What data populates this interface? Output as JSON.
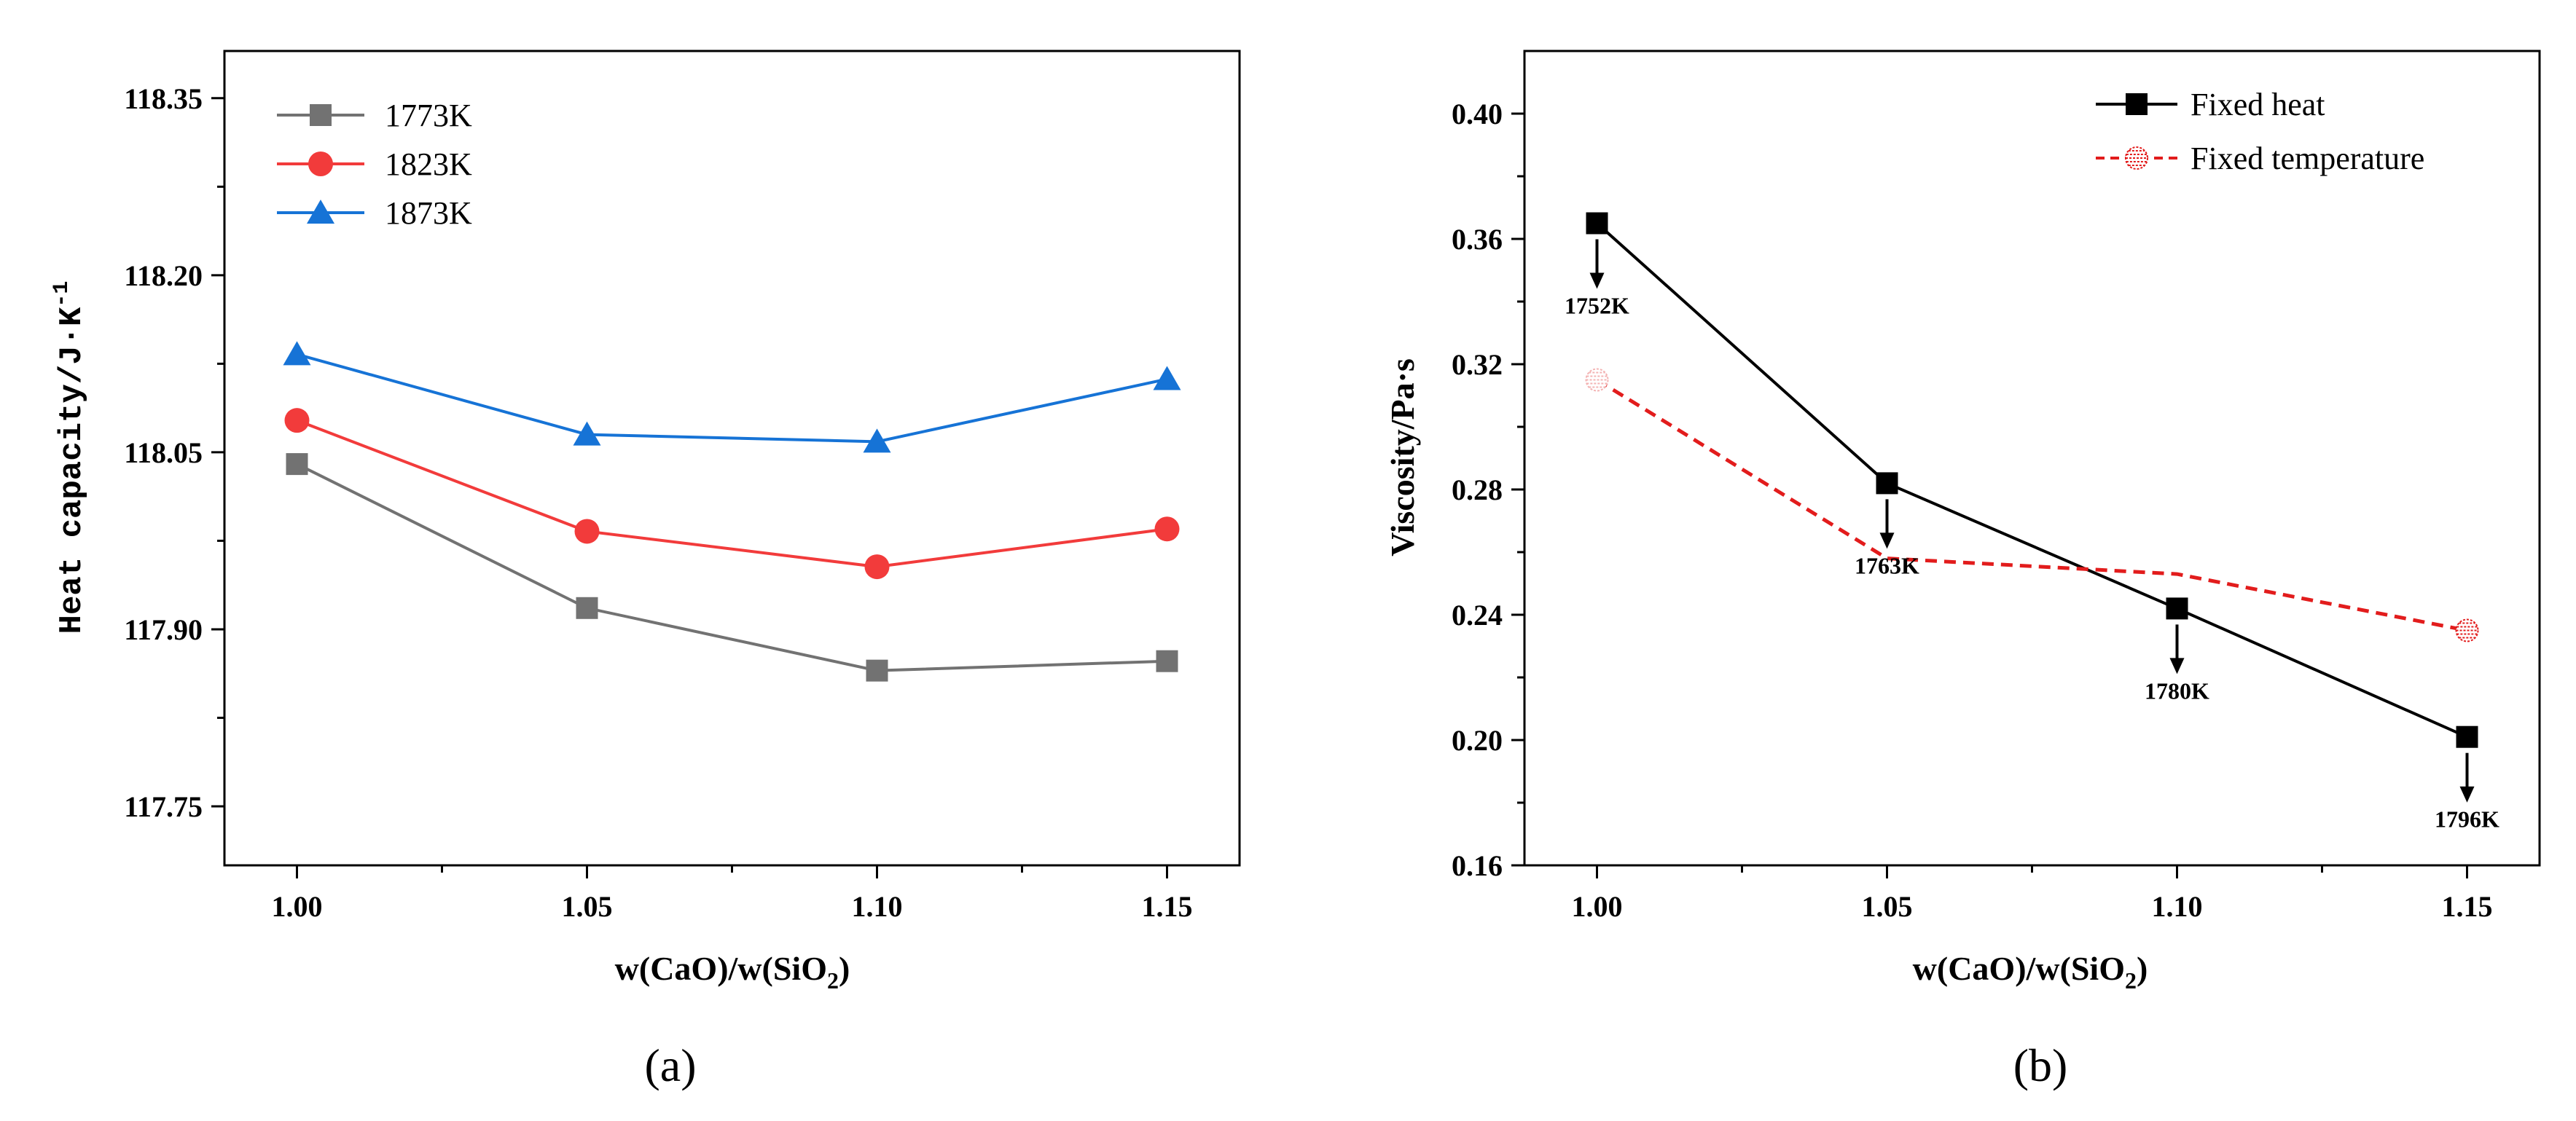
{
  "chart_data": [
    {
      "type": "line",
      "panel": "(a)",
      "xlabel": "w(CaO)/w(SiO",
      "xlabel_sub": "2",
      "xlabel_end": ")",
      "ylabel": "Heat capacity/J·K",
      "ylabel_sup": "-1",
      "x": [
        1.0,
        1.05,
        1.1,
        1.15
      ],
      "xticks": [
        "1.00",
        "1.05",
        "1.10",
        "1.15"
      ],
      "yticks": [
        "117.75",
        "117.90",
        "118.05",
        "118.20",
        "118.35"
      ],
      "xlim": [
        0.9875,
        1.1625
      ],
      "ylim": [
        117.7,
        118.39
      ],
      "series": [
        {
          "name": "1773K",
          "color": "#727272",
          "marker": "square",
          "values": [
            118.04,
            117.918,
            117.865,
            117.873
          ]
        },
        {
          "name": "1823K",
          "color": "#f23b3b",
          "marker": "circle",
          "values": [
            118.077,
            117.983,
            117.953,
            117.985
          ]
        },
        {
          "name": "1873K",
          "color": "#1673d6",
          "marker": "triangle",
          "values": [
            118.133,
            118.065,
            118.059,
            118.112
          ]
        }
      ]
    },
    {
      "type": "line",
      "panel": "(b)",
      "xlabel": "w(CaO)/w(SiO",
      "xlabel_sub": "2",
      "xlabel_end": ")",
      "ylabel": "Viscosity/Pa·s",
      "x": [
        1.0,
        1.05,
        1.1,
        1.15
      ],
      "xticks": [
        "1.00",
        "1.05",
        "1.10",
        "1.15"
      ],
      "yticks": [
        "0.16",
        "0.20",
        "0.24",
        "0.28",
        "0.32",
        "0.36",
        "0.40"
      ],
      "xlim": [
        0.9875,
        1.1625
      ],
      "ylim": [
        0.16,
        0.42
      ],
      "series": [
        {
          "name": "Fixed heat",
          "color": "#000000",
          "marker": "square",
          "line": "solid",
          "values": [
            0.365,
            0.282,
            0.242,
            0.201
          ]
        },
        {
          "name": "Fixed temperature",
          "color": "#e21c1c",
          "marker": "hatched-circle",
          "line": "dashed",
          "values": [
            0.315,
            0.258,
            0.253,
            0.235
          ]
        }
      ],
      "annotations": [
        {
          "x": 1.0,
          "text": "1752K"
        },
        {
          "x": 1.05,
          "text": "1763K"
        },
        {
          "x": 1.1,
          "text": "1780K"
        },
        {
          "x": 1.15,
          "text": "1796K"
        }
      ]
    }
  ]
}
